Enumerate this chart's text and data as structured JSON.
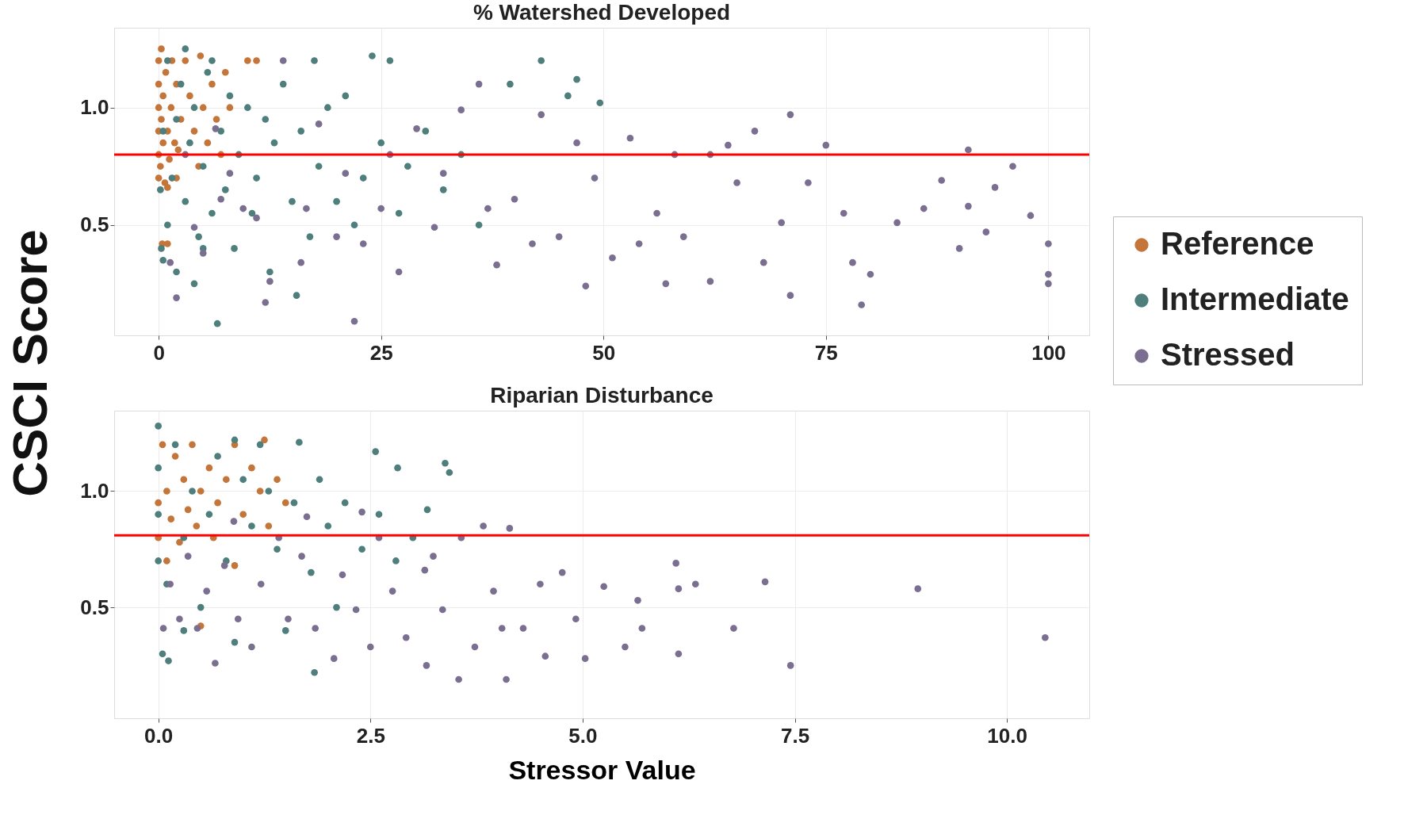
{
  "chart_data": [
    {
      "type": "scatter",
      "title": "% Watershed Developed",
      "ylabel": "CSCI Score",
      "xlim": [
        -5,
        104.6
      ],
      "xticks": [
        0,
        25,
        50,
        75,
        100
      ],
      "ylim": [
        0.03,
        1.34
      ],
      "yticks": [
        0.5,
        {
          "value": 1,
          "label": "1.0"
        }
      ],
      "grid": true,
      "legend": "right",
      "marker": "circle",
      "ref_lines": [
        {
          "axis": "y",
          "value": 0.8,
          "color": "#ff0000"
        }
      ],
      "series": [
        {
          "name": "Reference",
          "color": "#c4753a",
          "x": [
            0,
            0,
            0,
            0,
            0,
            0,
            0.2,
            0.3,
            0.3,
            0.4,
            0.5,
            0.5,
            0.7,
            0.8,
            1,
            1,
            1.2,
            1.4,
            1.5,
            1.8,
            2,
            2,
            2.5,
            3,
            3.5,
            4,
            4.5,
            4.7,
            5,
            5.5,
            6,
            6.5,
            7,
            7.5,
            8,
            10,
            11,
            1,
            2.2
          ],
          "values": [
            0.7,
            0.8,
            0.9,
            1.0,
            1.1,
            1.2,
            0.75,
            0.95,
            1.25,
            0.42,
            0.85,
            1.05,
            0.68,
            1.15,
            0.42,
            0.9,
            0.78,
            1.0,
            1.2,
            0.85,
            0.7,
            1.1,
            0.95,
            1.2,
            1.05,
            0.9,
            0.75,
            1.22,
            1.0,
            0.85,
            1.1,
            0.95,
            0.8,
            1.15,
            1.0,
            1.2,
            1.2,
            0.66,
            0.82
          ]
        },
        {
          "name": "Intermediate",
          "color": "#4e7f7c",
          "x": [
            0.3,
            0.5,
            1,
            1.5,
            2,
            2.5,
            3,
            3.5,
            4,
            4.5,
            5,
            5.5,
            6,
            6.6,
            7,
            7.5,
            8,
            8.5,
            9,
            10,
            10.5,
            11,
            12,
            12.5,
            13,
            14,
            15,
            15.5,
            16,
            17,
            17.5,
            18,
            19,
            20,
            21,
            22,
            23,
            24,
            25,
            26,
            27,
            28,
            30,
            32,
            34,
            36,
            39.5,
            43,
            47,
            49.6,
            46,
            1,
            2,
            3,
            0.5,
            4,
            6,
            0.2,
            5
          ],
          "values": [
            0.4,
            0.35,
            0.5,
            0.7,
            0.95,
            1.1,
            0.6,
            0.85,
            1.0,
            0.45,
            0.75,
            1.15,
            0.55,
            0.08,
            0.9,
            0.65,
            1.05,
            0.4,
            0.8,
            1.0,
            0.55,
            0.7,
            0.95,
            0.3,
            0.85,
            1.1,
            0.6,
            0.2,
            0.9,
            0.45,
            1.2,
            0.75,
            1.0,
            0.6,
            1.05,
            0.5,
            0.7,
            1.22,
            0.85,
            1.2,
            0.55,
            0.75,
            0.9,
            0.65,
            0.8,
            0.5,
            1.1,
            1.2,
            1.12,
            1.02,
            1.05,
            1.2,
            0.3,
            1.25,
            0.9,
            0.25,
            1.2,
            0.65,
            0.4
          ]
        },
        {
          "name": "Stressed",
          "color": "#7a6f91",
          "x": [
            100,
            100,
            100,
            98,
            96,
            91,
            91,
            90,
            86,
            88,
            83,
            79,
            80,
            77,
            75,
            73,
            71,
            71,
            68,
            67,
            64,
            62,
            62,
            58,
            57,
            59,
            56,
            53,
            51,
            48,
            47,
            49,
            43,
            42,
            40,
            38,
            36,
            34,
            32,
            31,
            29,
            27,
            25,
            23,
            22,
            21,
            20,
            18,
            16,
            14,
            12,
            11,
            8,
            7,
            5,
            4,
            2,
            9.5,
            3,
            1.3,
            6.4,
            12.5,
            16.6,
            26,
            37,
            45,
            54,
            93,
            94,
            78,
            70,
            65
          ],
          "values": [
            0.29,
            0.25,
            0.42,
            0.54,
            0.75,
            0.82,
            0.58,
            0.4,
            0.57,
            0.69,
            0.51,
            0.16,
            0.29,
            0.55,
            0.84,
            0.68,
            0.2,
            0.97,
            0.34,
            0.9,
            0.84,
            0.8,
            0.26,
            0.8,
            0.25,
            0.45,
            0.55,
            0.87,
            0.36,
            0.24,
            0.85,
            0.7,
            0.97,
            0.42,
            0.61,
            0.33,
            1.1,
            0.99,
            0.72,
            0.49,
            0.91,
            0.3,
            0.57,
            0.42,
            0.09,
            0.72,
            0.45,
            0.93,
            0.34,
            1.2,
            0.17,
            0.53,
            0.72,
            0.61,
            0.38,
            0.49,
            0.19,
            0.57,
            0.8,
            0.34,
            0.91,
            0.26,
            0.57,
            0.8,
            0.57,
            0.45,
            0.42,
            0.47,
            0.66,
            0.34,
            0.51,
            0.68
          ]
        }
      ]
    },
    {
      "type": "scatter",
      "title": "Riparian Disturbance",
      "xlabel": "Stressor Value",
      "xlim": [
        -0.52,
        10.97
      ],
      "xticks": [
        {
          "value": 0,
          "label": "0.0"
        },
        2.5,
        {
          "value": 5,
          "label": "5.0"
        },
        7.5,
        {
          "value": 10,
          "label": "10.0"
        }
      ],
      "ylim": [
        0.023,
        1.346
      ],
      "yticks": [
        0.5,
        {
          "value": 1,
          "label": "1.0"
        }
      ],
      "grid": true,
      "marker": "circle",
      "ref_lines": [
        {
          "axis": "y",
          "value": 0.81,
          "color": "#ff0000"
        }
      ],
      "series": [
        {
          "color": "#c4753a",
          "x": [
            0,
            0,
            0.05,
            0.1,
            0.1,
            0.15,
            0.2,
            0.25,
            0.3,
            0.35,
            0.4,
            0.45,
            0.5,
            0.5,
            0.6,
            0.65,
            0.7,
            0.8,
            0.9,
            0.9,
            1.0,
            1.1,
            1.2,
            1.25,
            1.3,
            1.4,
            1.5
          ],
          "values": [
            0.8,
            0.95,
            1.2,
            0.7,
            1.0,
            0.88,
            1.15,
            0.78,
            1.05,
            0.92,
            1.2,
            0.85,
            0.42,
            1.0,
            1.1,
            0.8,
            0.95,
            1.05,
            0.68,
            1.2,
            0.9,
            1.1,
            1.0,
            1.22,
            0.85,
            1.05,
            0.95
          ]
        },
        {
          "color": "#4e7f7c",
          "x": [
            3.38,
            3.43,
            2.56,
            2.82,
            3.17,
            1.84,
            0.12,
            0,
            1.66,
            0,
            0,
            0,
            0.1,
            0.2,
            0.3,
            0.4,
            0.5,
            0.6,
            0.7,
            0.8,
            0.9,
            1,
            1.1,
            1.3,
            1.4,
            1.5,
            1.6,
            1.8,
            1.9,
            2,
            2.1,
            2.2,
            2.4,
            2.6,
            2.8,
            3.0,
            0.05,
            0.3,
            1.2,
            0.9
          ],
          "values": [
            1.12,
            1.08,
            1.17,
            1.1,
            0.92,
            0.22,
            0.27,
            1.28,
            1.21,
            0.9,
            0.7,
            1.1,
            0.6,
            1.2,
            0.8,
            1.0,
            0.5,
            0.9,
            1.15,
            0.7,
            0.35,
            1.05,
            0.85,
            1.0,
            0.75,
            0.4,
            0.95,
            0.65,
            1.05,
            0.85,
            0.5,
            0.95,
            0.75,
            0.9,
            0.7,
            0.8,
            0.3,
            0.4,
            1.2,
            1.22
          ]
        },
        {
          "color": "#7a6f91",
          "x": [
            10.45,
            8.95,
            7.45,
            7.15,
            6.78,
            6.13,
            6.13,
            6.1,
            6.33,
            5.7,
            5.65,
            5.25,
            5.03,
            4.92,
            4.76,
            4.56,
            4.5,
            4.14,
            4.1,
            4.05,
            3.95,
            3.83,
            3.73,
            3.54,
            3.57,
            3.35,
            3.16,
            3.14,
            2.92,
            2.76,
            2.6,
            2.5,
            2.33,
            2.17,
            2.07,
            1.85,
            1.69,
            1.53,
            1.42,
            1.21,
            1.1,
            0.94,
            0.78,
            0.67,
            0.57,
            0.46,
            0.35,
            0.25,
            0.14,
            0.06,
            0.89,
            1.75,
            2.4,
            4.3,
            5.5,
            3.24
          ],
          "values": [
            0.37,
            0.58,
            0.25,
            0.61,
            0.41,
            0.3,
            0.58,
            0.69,
            0.6,
            0.41,
            0.53,
            0.59,
            0.28,
            0.45,
            0.65,
            0.29,
            0.6,
            0.84,
            0.19,
            0.41,
            0.57,
            0.85,
            0.33,
            0.19,
            0.8,
            0.49,
            0.25,
            0.66,
            0.37,
            0.57,
            0.8,
            0.33,
            0.49,
            0.64,
            0.28,
            0.41,
            0.72,
            0.45,
            0.8,
            0.6,
            0.33,
            0.45,
            0.68,
            0.26,
            0.57,
            0.41,
            0.72,
            0.45,
            0.6,
            0.41,
            0.87,
            0.89,
            0.91,
            0.41,
            0.33,
            0.72
          ]
        }
      ]
    }
  ]
}
